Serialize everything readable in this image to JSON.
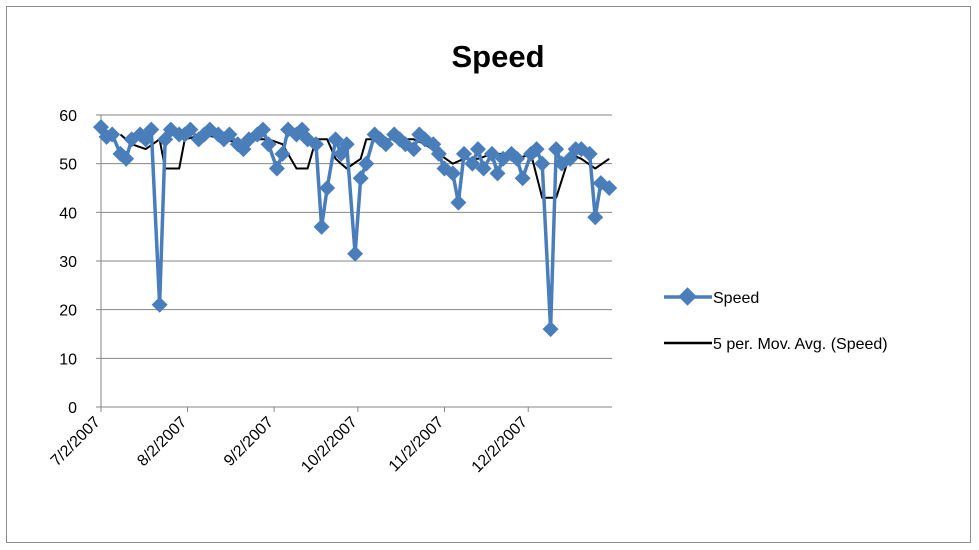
{
  "chart_data": {
    "type": "line",
    "title": "Speed",
    "xlabel": "",
    "ylabel": "",
    "ylim": [
      0,
      60
    ],
    "y_ticks": [
      0,
      10,
      20,
      30,
      40,
      50,
      60
    ],
    "x_tick_labels": [
      "7/2/2007",
      "8/2/2007",
      "9/2/2007",
      "10/2/2007",
      "11/2/2007",
      "12/2/2007"
    ],
    "x_tick_dates": [
      "2007-07-02",
      "2007-08-02",
      "2007-09-02",
      "2007-10-02",
      "2007-11-02",
      "2007-12-02"
    ],
    "xlim": [
      "2007-07-02",
      "2008-01-01"
    ],
    "grid": true,
    "legend_position": "right",
    "colors": {
      "speed": "#4a7ebb",
      "moving_average": "#000000",
      "grid": "#868686",
      "frame": "#8c8c8c"
    },
    "series": [
      {
        "name": "Speed",
        "marker": "diamond",
        "x": [
          "2007-07-02",
          "2007-07-04",
          "2007-07-06",
          "2007-07-09",
          "2007-07-11",
          "2007-07-13",
          "2007-07-16",
          "2007-07-18",
          "2007-07-20",
          "2007-07-23",
          "2007-07-25",
          "2007-07-27",
          "2007-07-30",
          "2007-08-01",
          "2007-08-03",
          "2007-08-06",
          "2007-08-08",
          "2007-08-10",
          "2007-08-13",
          "2007-08-15",
          "2007-08-17",
          "2007-08-20",
          "2007-08-22",
          "2007-08-24",
          "2007-08-27",
          "2007-08-29",
          "2007-08-31",
          "2007-09-03",
          "2007-09-05",
          "2007-09-07",
          "2007-09-10",
          "2007-09-12",
          "2007-09-14",
          "2007-09-17",
          "2007-09-19",
          "2007-09-21",
          "2007-09-24",
          "2007-09-26",
          "2007-09-28",
          "2007-10-01",
          "2007-10-03",
          "2007-10-05",
          "2007-10-08",
          "2007-10-10",
          "2007-10-12",
          "2007-10-15",
          "2007-10-17",
          "2007-10-19",
          "2007-10-22",
          "2007-10-24",
          "2007-10-26",
          "2007-10-29",
          "2007-10-31",
          "2007-11-02",
          "2007-11-05",
          "2007-11-07",
          "2007-11-09",
          "2007-11-12",
          "2007-11-14",
          "2007-11-16",
          "2007-11-19",
          "2007-11-21",
          "2007-11-23",
          "2007-11-26",
          "2007-11-28",
          "2007-11-30",
          "2007-12-03",
          "2007-12-05",
          "2007-12-07",
          "2007-12-10",
          "2007-12-12",
          "2007-12-14",
          "2007-12-17",
          "2007-12-19",
          "2007-12-21",
          "2007-12-24",
          "2007-12-26",
          "2007-12-28",
          "2007-12-31"
        ],
        "y": [
          57.5,
          55.5,
          56,
          52,
          51,
          55,
          56,
          55,
          57,
          21,
          55,
          57,
          56,
          56,
          57,
          55,
          56,
          57,
          56,
          55,
          56,
          54,
          53,
          55,
          56,
          57,
          54,
          49,
          52,
          57,
          56,
          57,
          55,
          54,
          37,
          45,
          55,
          52,
          54,
          31.5,
          47,
          50,
          56,
          55,
          54,
          56,
          55,
          54,
          53,
          56,
          55,
          54,
          52,
          49,
          48,
          42,
          52,
          50,
          53,
          49,
          52,
          48,
          51,
          52,
          51,
          47,
          52,
          53,
          50,
          16,
          53,
          50,
          51,
          53,
          53,
          52,
          39,
          46,
          45
        ]
      },
      {
        "name": "5 per. Mov. Avg. (Speed)",
        "x": [
          "2007-07-09",
          "2007-07-13",
          "2007-07-18",
          "2007-07-23",
          "2007-07-25",
          "2007-07-30",
          "2007-08-01",
          "2007-08-08",
          "2007-08-15",
          "2007-08-22",
          "2007-08-27",
          "2007-08-31",
          "2007-09-05",
          "2007-09-10",
          "2007-09-14",
          "2007-09-17",
          "2007-09-21",
          "2007-09-24",
          "2007-09-26",
          "2007-09-28",
          "2007-10-03",
          "2007-10-05",
          "2007-10-10",
          "2007-10-15",
          "2007-10-22",
          "2007-10-26",
          "2007-10-31",
          "2007-11-05",
          "2007-11-09",
          "2007-11-14",
          "2007-11-19",
          "2007-11-23",
          "2007-11-28",
          "2007-12-03",
          "2007-12-07",
          "2007-12-12",
          "2007-12-17",
          "2007-12-21",
          "2007-12-26",
          "2007-12-31"
        ],
        "y": [
          56,
          54,
          53,
          55,
          49,
          49,
          55,
          56,
          55,
          54,
          55,
          55,
          54,
          49,
          49,
          55,
          55,
          51,
          50,
          49,
          51,
          55,
          55,
          55,
          55,
          54,
          52,
          50,
          51,
          51,
          52,
          52,
          51,
          52,
          43,
          43,
          52,
          51,
          49,
          51
        ]
      }
    ]
  }
}
